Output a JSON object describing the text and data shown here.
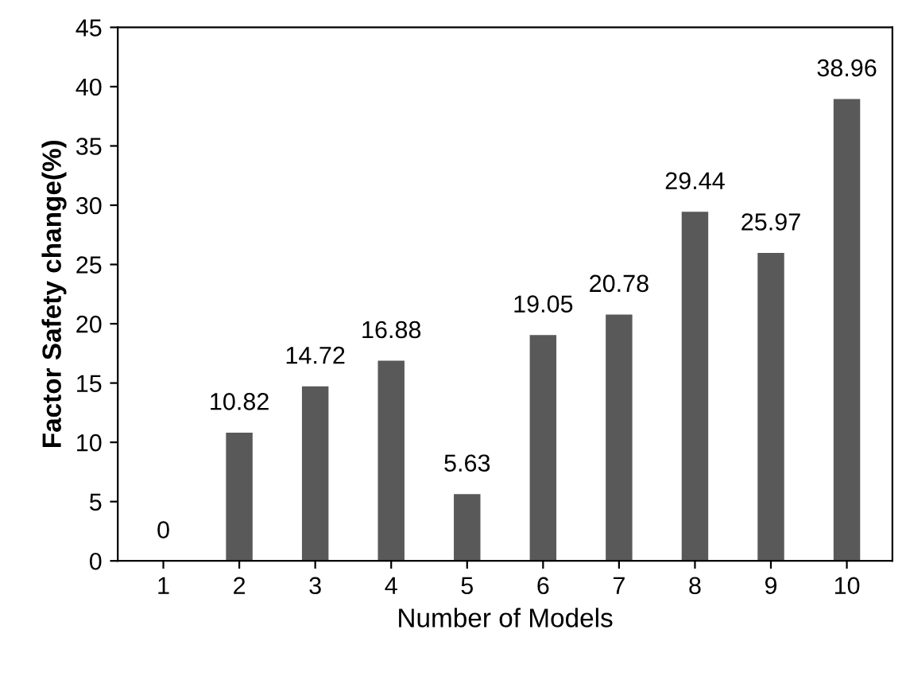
{
  "chart_data": {
    "type": "bar",
    "xlabel": "Number of Models",
    "ylabel": "Factor Safety change(%)",
    "categories": [
      "1",
      "2",
      "3",
      "4",
      "5",
      "6",
      "7",
      "8",
      "9",
      "10"
    ],
    "values": [
      0,
      10.82,
      14.72,
      16.88,
      5.63,
      19.05,
      20.78,
      29.44,
      25.97,
      38.96
    ],
    "color": "#595959",
    "ylim": [
      0,
      45
    ],
    "yticks": [
      0,
      5,
      10,
      15,
      20,
      25,
      30,
      35,
      40,
      45
    ],
    "grid": false,
    "data_labels": true
  }
}
